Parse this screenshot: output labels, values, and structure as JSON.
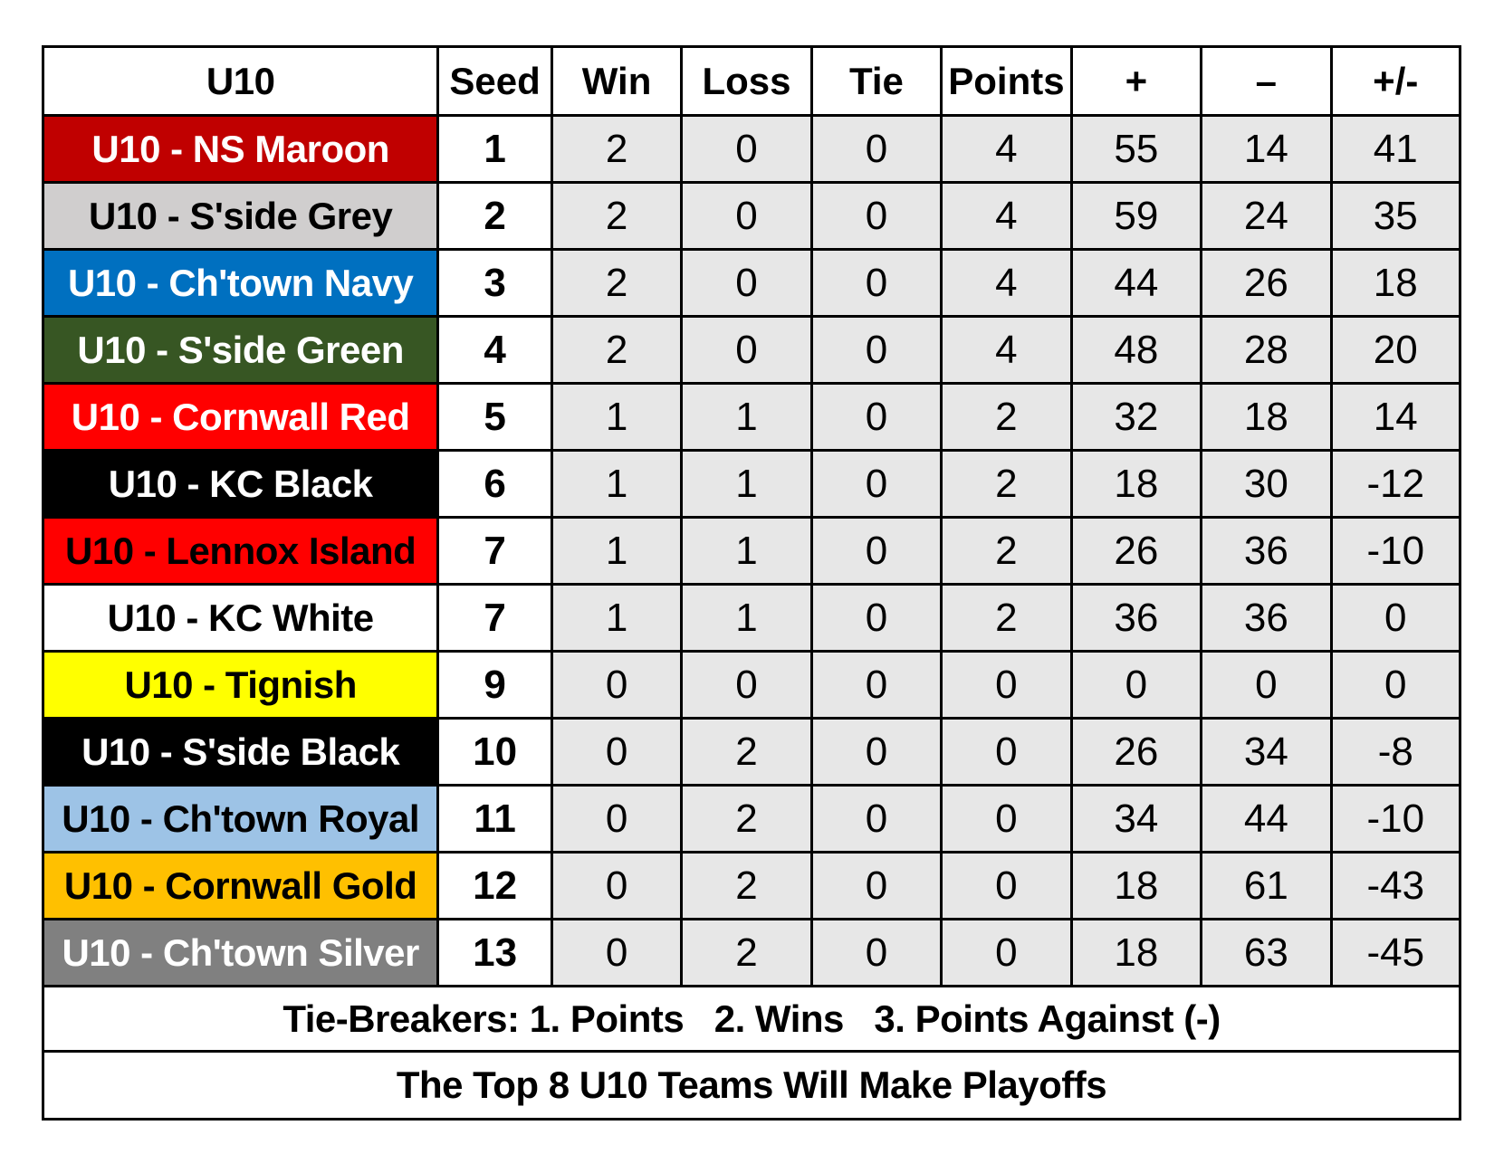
{
  "header": {
    "team": "U10",
    "seed": "Seed",
    "win": "Win",
    "loss": "Loss",
    "tie": "Tie",
    "points": "Points",
    "plus": "+",
    "minus": "–",
    "diff": "+/-"
  },
  "rows": [
    {
      "team": "U10 - NS Maroon",
      "seed": "1",
      "win": "2",
      "loss": "0",
      "tie": "0",
      "points": "4",
      "plus": "55",
      "minus": "14",
      "diff": "41",
      "bg": "#c00000",
      "fg": "#ffffff"
    },
    {
      "team": "U10 - S'side Grey",
      "seed": "2",
      "win": "2",
      "loss": "0",
      "tie": "0",
      "points": "4",
      "plus": "59",
      "minus": "24",
      "diff": "35",
      "bg": "#d0cece",
      "fg": "#000000"
    },
    {
      "team": "U10 - Ch'town Navy",
      "seed": "3",
      "win": "2",
      "loss": "0",
      "tie": "0",
      "points": "4",
      "plus": "44",
      "minus": "26",
      "diff": "18",
      "bg": "#0070c0",
      "fg": "#ffffff"
    },
    {
      "team": "U10 - S'side Green",
      "seed": "4",
      "win": "2",
      "loss": "0",
      "tie": "0",
      "points": "4",
      "plus": "48",
      "minus": "28",
      "diff": "20",
      "bg": "#375623",
      "fg": "#ffffff"
    },
    {
      "team": "U10 - Cornwall Red",
      "seed": "5",
      "win": "1",
      "loss": "1",
      "tie": "0",
      "points": "2",
      "plus": "32",
      "minus": "18",
      "diff": "14",
      "bg": "#ff0000",
      "fg": "#ffffff"
    },
    {
      "team": "U10 - KC Black",
      "seed": "6",
      "win": "1",
      "loss": "1",
      "tie": "0",
      "points": "2",
      "plus": "18",
      "minus": "30",
      "diff": "-12",
      "bg": "#000000",
      "fg": "#ffffff"
    },
    {
      "team": "U10 - Lennox Island",
      "seed": "7",
      "win": "1",
      "loss": "1",
      "tie": "0",
      "points": "2",
      "plus": "26",
      "minus": "36",
      "diff": "-10",
      "bg": "#ff0000",
      "fg": "#000000"
    },
    {
      "team": "U10 - KC White",
      "seed": "7",
      "win": "1",
      "loss": "1",
      "tie": "0",
      "points": "2",
      "plus": "36",
      "minus": "36",
      "diff": "0",
      "bg": "#ffffff",
      "fg": "#000000"
    },
    {
      "team": "U10 - Tignish",
      "seed": "9",
      "win": "0",
      "loss": "0",
      "tie": "0",
      "points": "0",
      "plus": "0",
      "minus": "0",
      "diff": "0",
      "bg": "#ffff00",
      "fg": "#000000"
    },
    {
      "team": "U10 - S'side Black",
      "seed": "10",
      "win": "0",
      "loss": "2",
      "tie": "0",
      "points": "0",
      "plus": "26",
      "minus": "34",
      "diff": "-8",
      "bg": "#000000",
      "fg": "#ffffff"
    },
    {
      "team": "U10 - Ch'town Royal",
      "seed": "11",
      "win": "0",
      "loss": "2",
      "tie": "0",
      "points": "0",
      "plus": "34",
      "minus": "44",
      "diff": "-10",
      "bg": "#9dc3e6",
      "fg": "#000000"
    },
    {
      "team": "U10 - Cornwall Gold",
      "seed": "12",
      "win": "0",
      "loss": "2",
      "tie": "0",
      "points": "0",
      "plus": "18",
      "minus": "61",
      "diff": "-43",
      "bg": "#ffc000",
      "fg": "#000000"
    },
    {
      "team": "U10 - Ch'town Silver",
      "seed": "13",
      "win": "0",
      "loss": "2",
      "tie": "0",
      "points": "0",
      "plus": "18",
      "minus": "63",
      "diff": "-45",
      "bg": "#808080",
      "fg": "#ffffff"
    }
  ],
  "footer": {
    "tiebreakers": "Tie-Breakers: 1. Points   2. Wins   3. Points Against (-)",
    "playoffs": "The Top 8 U10 Teams Will Make Playoffs"
  }
}
